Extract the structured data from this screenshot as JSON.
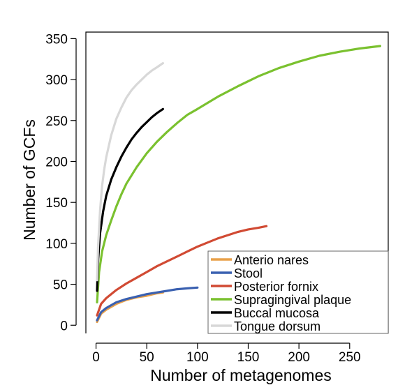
{
  "chart_data": {
    "type": "line",
    "title": "",
    "xlabel": "Number of metagenomes",
    "ylabel": "Number of GCFs",
    "xlim": [
      -10,
      288
    ],
    "ylim": [
      -10,
      358
    ],
    "x_ticks": [
      0,
      50,
      100,
      150,
      200,
      250
    ],
    "y_ticks": [
      0,
      50,
      100,
      150,
      200,
      250,
      300,
      350
    ],
    "grid": false,
    "legend_position": "bottom-right",
    "series": [
      {
        "name": "Anterio nares",
        "color": "#e8a14a",
        "points": [
          [
            1,
            4
          ],
          [
            5,
            14
          ],
          [
            10,
            19
          ],
          [
            20,
            26
          ],
          [
            30,
            31
          ],
          [
            40,
            34
          ],
          [
            50,
            36
          ],
          [
            60,
            39
          ],
          [
            66,
            40
          ]
        ]
      },
      {
        "name": "Stool",
        "color": "#3a60b0",
        "points": [
          [
            1,
            6
          ],
          [
            5,
            16
          ],
          [
            10,
            21
          ],
          [
            20,
            28
          ],
          [
            30,
            32
          ],
          [
            40,
            35
          ],
          [
            50,
            38
          ],
          [
            60,
            40
          ],
          [
            70,
            42
          ],
          [
            80,
            44
          ],
          [
            90,
            45
          ],
          [
            100,
            46
          ]
        ]
      },
      {
        "name": "Posterior fornix",
        "color": "#d14a33",
        "points": [
          [
            1,
            12
          ],
          [
            5,
            26
          ],
          [
            10,
            33
          ],
          [
            20,
            43
          ],
          [
            30,
            51
          ],
          [
            40,
            58
          ],
          [
            50,
            65
          ],
          [
            60,
            72
          ],
          [
            70,
            78
          ],
          [
            80,
            84
          ],
          [
            90,
            90
          ],
          [
            100,
            96
          ],
          [
            110,
            101
          ],
          [
            120,
            106
          ],
          [
            130,
            110
          ],
          [
            140,
            114
          ],
          [
            150,
            117
          ],
          [
            160,
            119
          ],
          [
            168,
            121
          ]
        ]
      },
      {
        "name": "Supragingival plaque",
        "color": "#7ac12f",
        "points": [
          [
            1,
            28
          ],
          [
            3,
            65
          ],
          [
            6,
            90
          ],
          [
            10,
            110
          ],
          [
            15,
            128
          ],
          [
            20,
            145
          ],
          [
            25,
            160
          ],
          [
            30,
            173
          ],
          [
            40,
            193
          ],
          [
            50,
            210
          ],
          [
            60,
            224
          ],
          [
            70,
            236
          ],
          [
            80,
            247
          ],
          [
            90,
            257
          ],
          [
            100,
            264
          ],
          [
            120,
            279
          ],
          [
            140,
            292
          ],
          [
            160,
            304
          ],
          [
            180,
            314
          ],
          [
            200,
            322
          ],
          [
            220,
            329
          ],
          [
            240,
            334
          ],
          [
            260,
            338
          ],
          [
            280,
            341
          ]
        ]
      },
      {
        "name": "Buccal mucosa",
        "color": "#000000",
        "points": [
          [
            1,
            42
          ],
          [
            2,
            78
          ],
          [
            4,
            112
          ],
          [
            7,
            139
          ],
          [
            10,
            158
          ],
          [
            15,
            178
          ],
          [
            20,
            193
          ],
          [
            25,
            206
          ],
          [
            30,
            217
          ],
          [
            35,
            227
          ],
          [
            40,
            235
          ],
          [
            45,
            242
          ],
          [
            50,
            248
          ],
          [
            55,
            254
          ],
          [
            60,
            259
          ],
          [
            66,
            264
          ]
        ]
      },
      {
        "name": "Tongue dorsum",
        "color": "#d8d8d8",
        "points": [
          [
            1,
            55
          ],
          [
            2,
            95
          ],
          [
            4,
            140
          ],
          [
            6,
            170
          ],
          [
            8,
            190
          ],
          [
            10,
            205
          ],
          [
            15,
            232
          ],
          [
            20,
            252
          ],
          [
            25,
            266
          ],
          [
            30,
            278
          ],
          [
            35,
            287
          ],
          [
            40,
            294
          ],
          [
            45,
            300
          ],
          [
            50,
            306
          ],
          [
            55,
            311
          ],
          [
            60,
            315
          ],
          [
            66,
            320
          ]
        ]
      }
    ]
  }
}
